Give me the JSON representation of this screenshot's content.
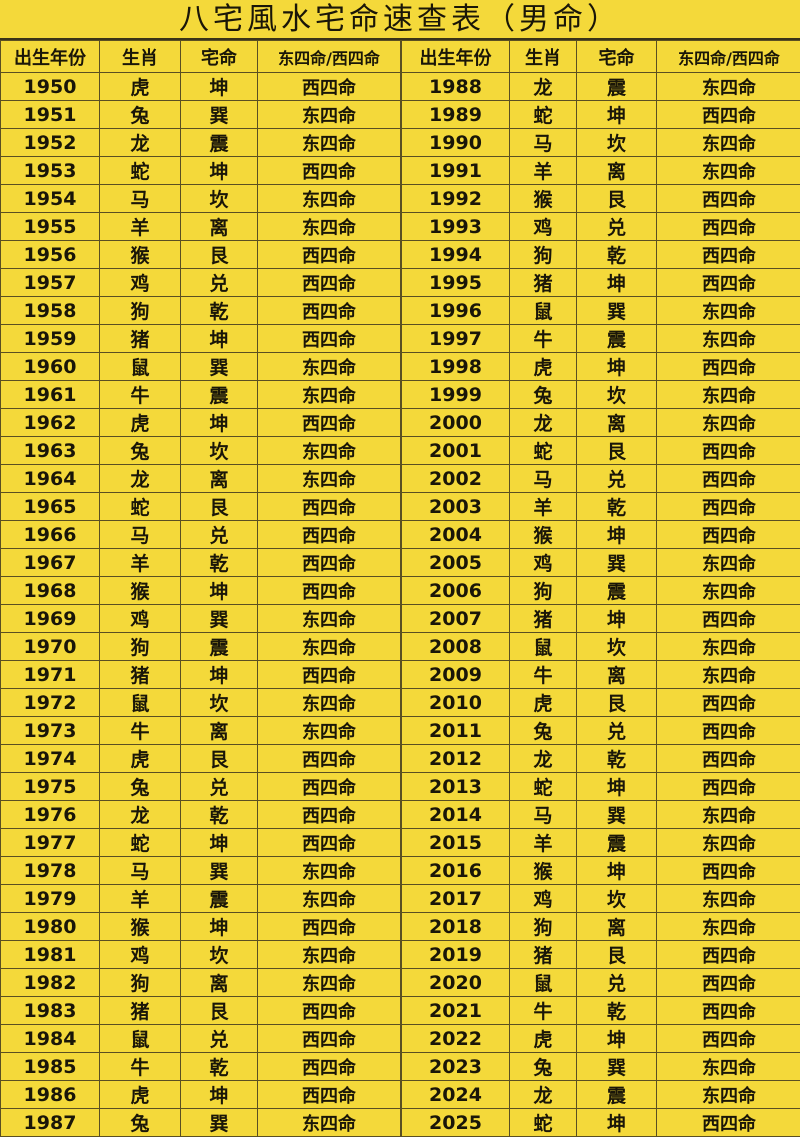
{
  "title": "八宅風水宅命速查表（男命）",
  "headers": [
    "出生年份",
    "生肖",
    "宅命",
    "东四命/西四命"
  ],
  "left_rows": [
    [
      "1950",
      "虎",
      "坤",
      "西四命"
    ],
    [
      "1951",
      "兔",
      "巽",
      "东四命"
    ],
    [
      "1952",
      "龙",
      "震",
      "东四命"
    ],
    [
      "1953",
      "蛇",
      "坤",
      "西四命"
    ],
    [
      "1954",
      "马",
      "坎",
      "东四命"
    ],
    [
      "1955",
      "羊",
      "离",
      "东四命"
    ],
    [
      "1956",
      "猴",
      "艮",
      "西四命"
    ],
    [
      "1957",
      "鸡",
      "兑",
      "西四命"
    ],
    [
      "1958",
      "狗",
      "乾",
      "西四命"
    ],
    [
      "1959",
      "猪",
      "坤",
      "西四命"
    ],
    [
      "1960",
      "鼠",
      "巽",
      "东四命"
    ],
    [
      "1961",
      "牛",
      "震",
      "东四命"
    ],
    [
      "1962",
      "虎",
      "坤",
      "西四命"
    ],
    [
      "1963",
      "兔",
      "坎",
      "东四命"
    ],
    [
      "1964",
      "龙",
      "离",
      "东四命"
    ],
    [
      "1965",
      "蛇",
      "艮",
      "西四命"
    ],
    [
      "1966",
      "马",
      "兑",
      "西四命"
    ],
    [
      "1967",
      "羊",
      "乾",
      "西四命"
    ],
    [
      "1968",
      "猴",
      "坤",
      "西四命"
    ],
    [
      "1969",
      "鸡",
      "巽",
      "东四命"
    ],
    [
      "1970",
      "狗",
      "震",
      "东四命"
    ],
    [
      "1971",
      "猪",
      "坤",
      "西四命"
    ],
    [
      "1972",
      "鼠",
      "坎",
      "东四命"
    ],
    [
      "1973",
      "牛",
      "离",
      "东四命"
    ],
    [
      "1974",
      "虎",
      "艮",
      "西四命"
    ],
    [
      "1975",
      "兔",
      "兑",
      "西四命"
    ],
    [
      "1976",
      "龙",
      "乾",
      "西四命"
    ],
    [
      "1977",
      "蛇",
      "坤",
      "西四命"
    ],
    [
      "1978",
      "马",
      "巽",
      "东四命"
    ],
    [
      "1979",
      "羊",
      "震",
      "东四命"
    ],
    [
      "1980",
      "猴",
      "坤",
      "西四命"
    ],
    [
      "1981",
      "鸡",
      "坎",
      "东四命"
    ],
    [
      "1982",
      "狗",
      "离",
      "东四命"
    ],
    [
      "1983",
      "猪",
      "艮",
      "西四命"
    ],
    [
      "1984",
      "鼠",
      "兑",
      "西四命"
    ],
    [
      "1985",
      "牛",
      "乾",
      "西四命"
    ],
    [
      "1986",
      "虎",
      "坤",
      "西四命"
    ],
    [
      "1987",
      "兔",
      "巽",
      "东四命"
    ]
  ],
  "right_rows": [
    [
      "1988",
      "龙",
      "震",
      "东四命"
    ],
    [
      "1989",
      "蛇",
      "坤",
      "西四命"
    ],
    [
      "1990",
      "马",
      "坎",
      "东四命"
    ],
    [
      "1991",
      "羊",
      "离",
      "东四命"
    ],
    [
      "1992",
      "猴",
      "艮",
      "西四命"
    ],
    [
      "1993",
      "鸡",
      "兑",
      "西四命"
    ],
    [
      "1994",
      "狗",
      "乾",
      "西四命"
    ],
    [
      "1995",
      "猪",
      "坤",
      "西四命"
    ],
    [
      "1996",
      "鼠",
      "巽",
      "东四命"
    ],
    [
      "1997",
      "牛",
      "震",
      "东四命"
    ],
    [
      "1998",
      "虎",
      "坤",
      "西四命"
    ],
    [
      "1999",
      "兔",
      "坎",
      "东四命"
    ],
    [
      "2000",
      "龙",
      "离",
      "东四命"
    ],
    [
      "2001",
      "蛇",
      "艮",
      "西四命"
    ],
    [
      "2002",
      "马",
      "兑",
      "西四命"
    ],
    [
      "2003",
      "羊",
      "乾",
      "西四命"
    ],
    [
      "2004",
      "猴",
      "坤",
      "西四命"
    ],
    [
      "2005",
      "鸡",
      "巽",
      "东四命"
    ],
    [
      "2006",
      "狗",
      "震",
      "东四命"
    ],
    [
      "2007",
      "猪",
      "坤",
      "西四命"
    ],
    [
      "2008",
      "鼠",
      "坎",
      "东四命"
    ],
    [
      "2009",
      "牛",
      "离",
      "东四命"
    ],
    [
      "2010",
      "虎",
      "艮",
      "西四命"
    ],
    [
      "2011",
      "兔",
      "兑",
      "西四命"
    ],
    [
      "2012",
      "龙",
      "乾",
      "西四命"
    ],
    [
      "2013",
      "蛇",
      "坤",
      "西四命"
    ],
    [
      "2014",
      "马",
      "巽",
      "东四命"
    ],
    [
      "2015",
      "羊",
      "震",
      "东四命"
    ],
    [
      "2016",
      "猴",
      "坤",
      "西四命"
    ],
    [
      "2017",
      "鸡",
      "坎",
      "东四命"
    ],
    [
      "2018",
      "狗",
      "离",
      "东四命"
    ],
    [
      "2019",
      "猪",
      "艮",
      "西四命"
    ],
    [
      "2020",
      "鼠",
      "兑",
      "西四命"
    ],
    [
      "2021",
      "牛",
      "乾",
      "西四命"
    ],
    [
      "2022",
      "虎",
      "坤",
      "西四命"
    ],
    [
      "2023",
      "兔",
      "巽",
      "东四命"
    ],
    [
      "2024",
      "龙",
      "震",
      "东四命"
    ],
    [
      "2025",
      "蛇",
      "坤",
      "西四命"
    ]
  ],
  "colors": {
    "background": "#f4d93a",
    "text": "#1a1608",
    "grid": "#5a4f22"
  }
}
